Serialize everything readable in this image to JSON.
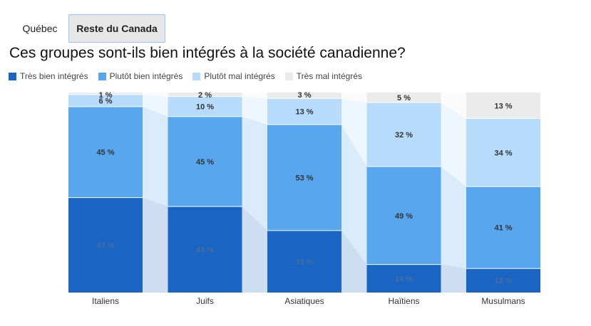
{
  "tabs": [
    {
      "label": "Québec",
      "active": false
    },
    {
      "label": "Reste du Canada",
      "active": true
    }
  ],
  "colors": {
    "tres_bien": "#1a64c4",
    "plutot_bien": "#58a7ee",
    "plutot_mal": "#b7dbfa",
    "tres_mal": "#ebebeb",
    "tab_border": "#9ec3f0"
  },
  "chart_data": {
    "type": "bar",
    "stacked": true,
    "title": "Ces groupes sont-ils bien intégrés à la société canadienne?",
    "categories": [
      "Italiens",
      "Juifs",
      "Asiatiques",
      "Haïtiens",
      "Musulmans"
    ],
    "series": [
      {
        "name": "Très bien intégrés",
        "values": [
          47,
          43,
          31,
          14,
          12
        ],
        "color": "#1a64c4"
      },
      {
        "name": "Plutôt bien intégrés",
        "values": [
          45,
          45,
          53,
          49,
          41
        ],
        "color": "#58a7ee"
      },
      {
        "name": "Plutôt mal intégrés",
        "values": [
          6,
          10,
          13,
          32,
          34
        ],
        "color": "#b7dbfa"
      },
      {
        "name": "Très mal intégrés",
        "values": [
          1,
          2,
          3,
          5,
          13
        ],
        "color": "#ebebeb"
      }
    ],
    "value_suffix": " %",
    "ylim": [
      0,
      100
    ],
    "legend": "top-left"
  }
}
